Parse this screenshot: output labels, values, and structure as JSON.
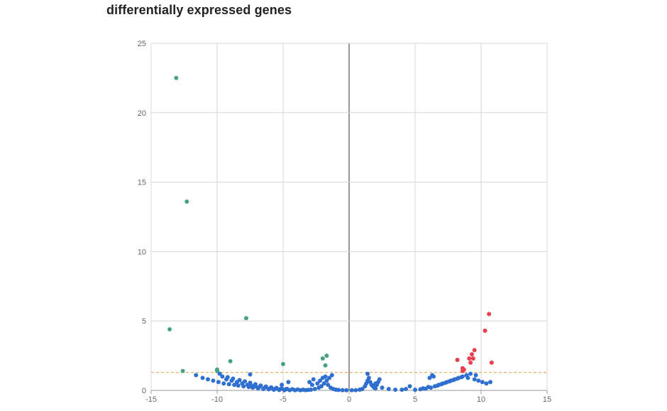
{
  "colors": {
    "background": "#ffffff",
    "grid": "#d6d6d6",
    "zero_axis": "#333333",
    "threshold_line": "#e8a04a",
    "down": "#47a37f",
    "up": "#e8404f",
    "not_significant": "#2e6fd0"
  },
  "chart_data": {
    "type": "scatter",
    "title": "differentially expressed genes",
    "xlabel": "",
    "ylabel": "",
    "xlim": [
      -15,
      15
    ],
    "ylim": [
      0,
      25
    ],
    "x_ticks": [
      "-15",
      "-10",
      "-5",
      "0",
      "5",
      "10",
      "15"
    ],
    "y_ticks": [
      "0",
      "5",
      "10",
      "15",
      "20",
      "25"
    ],
    "grid": true,
    "threshold_y": 1.3,
    "legend": "none",
    "series": [
      {
        "color_key": "down",
        "points": [
          [
            -13.1,
            22.5
          ],
          [
            -12.3,
            13.6
          ],
          [
            -13.6,
            4.4
          ],
          [
            -7.8,
            5.2
          ],
          [
            -9.0,
            2.1
          ],
          [
            -10.0,
            1.5
          ],
          [
            -5.0,
            1.9
          ],
          [
            -2.0,
            2.3
          ],
          [
            -1.7,
            2.5
          ],
          [
            -1.8,
            1.8
          ],
          [
            -12.6,
            1.4
          ],
          [
            -10.0,
            1.4
          ]
        ]
      },
      {
        "color_key": "up",
        "points": [
          [
            10.6,
            5.5
          ],
          [
            10.3,
            4.3
          ],
          [
            9.5,
            2.9
          ],
          [
            9.3,
            2.6
          ],
          [
            9.4,
            2.3
          ],
          [
            9.1,
            2.3
          ],
          [
            10.8,
            2.0
          ],
          [
            9.2,
            2.0
          ],
          [
            8.2,
            2.2
          ],
          [
            8.6,
            1.6
          ],
          [
            8.7,
            1.5
          ],
          [
            8.6,
            1.4
          ]
        ]
      },
      {
        "color_key": "not_significant",
        "points": [
          [
            -11.6,
            1.1
          ],
          [
            -11.1,
            0.9
          ],
          [
            -10.7,
            0.8
          ],
          [
            -10.3,
            0.7
          ],
          [
            -9.9,
            0.6
          ],
          [
            -9.5,
            0.5
          ],
          [
            -9.1,
            0.45
          ],
          [
            -8.7,
            0.4
          ],
          [
            -8.4,
            0.35
          ],
          [
            -8.0,
            0.3
          ],
          [
            -7.6,
            0.25
          ],
          [
            -7.3,
            0.2
          ],
          [
            -6.9,
            0.15
          ],
          [
            -6.5,
            0.1
          ],
          [
            -6.1,
            0.08
          ],
          [
            -5.7,
            0.05
          ],
          [
            -5.3,
            0.03
          ],
          [
            -4.9,
            0.02
          ],
          [
            -4.5,
            0.02
          ],
          [
            -4.1,
            0.01
          ],
          [
            -3.7,
            0.01
          ],
          [
            -3.3,
            0.02
          ],
          [
            -2.9,
            0.05
          ],
          [
            -2.6,
            0.1
          ],
          [
            -2.3,
            0.2
          ],
          [
            -2.1,
            0.3
          ],
          [
            -1.9,
            0.5
          ],
          [
            -1.7,
            0.7
          ],
          [
            -1.5,
            0.9
          ],
          [
            -1.3,
            1.1
          ],
          [
            -9.8,
            1.2
          ],
          [
            -9.6,
            1.0
          ],
          [
            -9.3,
            0.8
          ],
          [
            -8.9,
            0.7
          ],
          [
            -8.5,
            0.6
          ],
          [
            -8.1,
            0.5
          ],
          [
            -7.7,
            0.4
          ],
          [
            -7.4,
            0.35
          ],
          [
            -7.1,
            0.3
          ],
          [
            -6.8,
            0.25
          ],
          [
            -6.4,
            0.2
          ],
          [
            -6.0,
            0.15
          ],
          [
            -5.6,
            0.12
          ],
          [
            -5.2,
            0.1
          ],
          [
            -4.8,
            0.08
          ],
          [
            -3.0,
            0.6
          ],
          [
            -2.8,
            0.4
          ],
          [
            -2.4,
            0.5
          ],
          [
            -2.2,
            0.7
          ],
          [
            -2.0,
            0.9
          ],
          [
            -1.8,
            1.0
          ],
          [
            -1.6,
            0.4
          ],
          [
            -1.4,
            0.2
          ],
          [
            -1.2,
            0.1
          ],
          [
            -1.0,
            0.05
          ],
          [
            -0.8,
            0.03
          ],
          [
            -0.5,
            0.02
          ],
          [
            -0.2,
            0.01
          ],
          [
            0.2,
            0.01
          ],
          [
            0.5,
            0.02
          ],
          [
            0.8,
            0.05
          ],
          [
            1.0,
            0.1
          ],
          [
            1.2,
            0.3
          ],
          [
            1.3,
            0.5
          ],
          [
            1.4,
            0.7
          ],
          [
            1.5,
            0.9
          ],
          [
            1.4,
            1.2
          ],
          [
            1.6,
            0.6
          ],
          [
            1.7,
            0.4
          ],
          [
            1.8,
            0.3
          ],
          [
            1.9,
            0.2
          ],
          [
            2.0,
            0.15
          ],
          [
            2.1,
            0.4
          ],
          [
            2.2,
            0.6
          ],
          [
            2.3,
            0.8
          ],
          [
            2.0,
            0.5
          ],
          [
            2.5,
            0.2
          ],
          [
            3.0,
            0.1
          ],
          [
            3.5,
            0.05
          ],
          [
            4.0,
            0.05
          ],
          [
            4.3,
            0.1
          ],
          [
            4.6,
            0.3
          ],
          [
            5.0,
            0.05
          ],
          [
            5.4,
            0.08
          ],
          [
            5.8,
            0.12
          ],
          [
            6.2,
            0.2
          ],
          [
            6.5,
            0.3
          ],
          [
            6.8,
            0.4
          ],
          [
            7.1,
            0.5
          ],
          [
            7.4,
            0.6
          ],
          [
            7.7,
            0.7
          ],
          [
            8.0,
            0.8
          ],
          [
            8.3,
            0.9
          ],
          [
            8.6,
            1.0
          ],
          [
            8.9,
            1.1
          ],
          [
            9.2,
            1.2
          ],
          [
            6.3,
            1.1
          ],
          [
            6.4,
            1.0
          ],
          [
            6.1,
            0.9
          ],
          [
            5.6,
            0.15
          ],
          [
            6.0,
            0.25
          ],
          [
            6.7,
            0.35
          ],
          [
            7.0,
            0.45
          ],
          [
            7.3,
            0.55
          ],
          [
            7.6,
            0.65
          ],
          [
            7.9,
            0.75
          ],
          [
            8.2,
            0.85
          ],
          [
            8.5,
            0.95
          ],
          [
            9.0,
            0.9
          ],
          [
            9.5,
            0.8
          ],
          [
            9.8,
            0.7
          ],
          [
            10.1,
            0.6
          ],
          [
            10.4,
            0.5
          ],
          [
            10.7,
            0.6
          ],
          [
            9.6,
            1.1
          ],
          [
            -7.5,
            1.15
          ],
          [
            -9.2,
            0.95
          ],
          [
            -8.8,
            0.85
          ],
          [
            -8.3,
            0.75
          ],
          [
            -7.9,
            0.65
          ],
          [
            -7.5,
            0.55
          ],
          [
            -7.1,
            0.45
          ],
          [
            -6.7,
            0.35
          ],
          [
            -6.3,
            0.28
          ],
          [
            -5.9,
            0.22
          ],
          [
            -5.5,
            0.18
          ],
          [
            -5.1,
            0.14
          ],
          [
            -4.7,
            0.11
          ],
          [
            -4.3,
            0.09
          ],
          [
            -3.9,
            0.07
          ],
          [
            -3.5,
            0.05
          ],
          [
            -3.1,
            0.04
          ],
          [
            -4.6,
            0.6
          ],
          [
            -5.1,
            0.4
          ],
          [
            -2.7,
            0.8
          ]
        ]
      }
    ]
  }
}
